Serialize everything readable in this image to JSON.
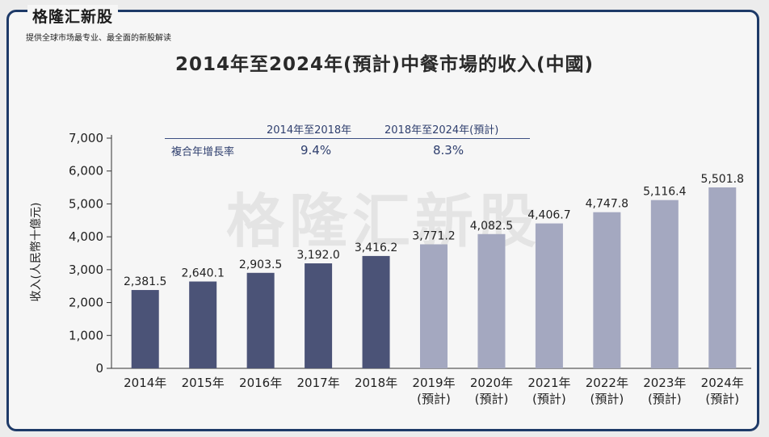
{
  "header": {
    "brand": "格隆汇新股",
    "tagline": "提供全球市场最专业、最全面的新股解读",
    "watermark": "格隆汇新股"
  },
  "chart_data": {
    "type": "bar",
    "title": "2014年至2024年(預計)中餐市場的收入(中國)",
    "ylabel": "收入(人民幣十億元)",
    "xlabel": "",
    "ylim": [
      0,
      7000
    ],
    "yticks": [
      "0",
      "1,000",
      "2,000",
      "3,000",
      "4,000",
      "5,000",
      "6,000",
      "7,000"
    ],
    "categories": [
      [
        "2014年"
      ],
      [
        "2015年"
      ],
      [
        "2016年"
      ],
      [
        "2017年"
      ],
      [
        "2018年"
      ],
      [
        "2019年",
        "(預計)"
      ],
      [
        "2020年",
        "(預計)"
      ],
      [
        "2021年",
        "(預計)"
      ],
      [
        "2022年",
        "(預計)"
      ],
      [
        "2023年",
        "(預計)"
      ],
      [
        "2024年",
        "(預計)"
      ]
    ],
    "values": [
      2381.5,
      2640.1,
      2903.5,
      3192.0,
      3416.2,
      3771.2,
      4082.5,
      4406.7,
      4747.8,
      5116.4,
      5501.8
    ],
    "value_labels": [
      "2,381.5",
      "2,640.1",
      "2,903.5",
      "3,192.0",
      "3,416.2",
      "3,771.2",
      "4,082.5",
      "4,406.7",
      "4,747.8",
      "5,116.4",
      "5,501.8"
    ],
    "bar_colors": {
      "historical": "#4b5377",
      "forecast": "#a4a8c0"
    },
    "forecast_start_index": 5,
    "grid": false,
    "cagr": {
      "row_label": "複合年增長率",
      "periods": [
        {
          "label": "2014年至2018年",
          "value": "9.4%"
        },
        {
          "label": "2018年至2024年(預計)",
          "value": "8.3%"
        }
      ]
    }
  }
}
